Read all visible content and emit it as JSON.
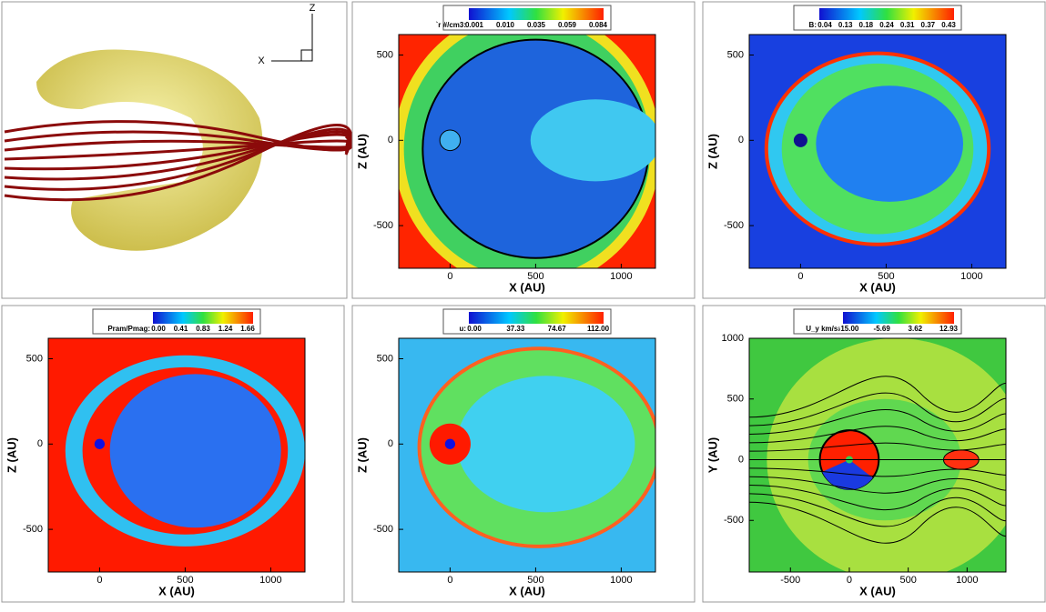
{
  "render": {
    "axes": [
      "Z",
      "X"
    ]
  },
  "plots": [
    {
      "colorbar": {
        "label": "`r #/cm3:",
        "ticks": [
          "0.001",
          "0.010",
          "0.035",
          "0.059",
          "0.084"
        ]
      },
      "xlabel": "X (AU)",
      "ylabel": "Z (AU)",
      "xlim": [
        -300,
        1200
      ],
      "ylim": [
        -750,
        620
      ],
      "xticks": [
        0,
        500,
        1000
      ],
      "yticks": [
        -500,
        0,
        500
      ]
    },
    {
      "colorbar": {
        "label": "B:",
        "ticks": [
          "0.04",
          "0.13",
          "0.18",
          "0.24",
          "0.31",
          "0.37",
          "0.43"
        ]
      },
      "xlabel": "X (AU)",
      "ylabel": "Z (AU)",
      "xlim": [
        -300,
        1200
      ],
      "ylim": [
        -750,
        620
      ],
      "xticks": [
        0,
        500,
        1000
      ],
      "yticks": [
        -500,
        0,
        500
      ]
    },
    {
      "colorbar": {
        "label": "Pram/Pmag:",
        "ticks": [
          "0.00",
          "0.41",
          "0.83",
          "1.24",
          "1.66"
        ]
      },
      "xlabel": "X (AU)",
      "ylabel": "Z (AU)",
      "xlim": [
        -300,
        1200
      ],
      "ylim": [
        -750,
        620
      ],
      "xticks": [
        0,
        500,
        1000
      ],
      "yticks": [
        -500,
        0,
        500
      ]
    },
    {
      "colorbar": {
        "label": "u:",
        "ticks": [
          "0.00",
          "37.33",
          "74.67",
          "112.00"
        ]
      },
      "xlabel": "X (AU)",
      "ylabel": "Z (AU)",
      "xlim": [
        -300,
        1200
      ],
      "ylim": [
        -750,
        620
      ],
      "xticks": [
        0,
        500,
        1000
      ],
      "yticks": [
        -500,
        0,
        500
      ]
    },
    {
      "colorbar": {
        "label": "U_y km/s:",
        "ticks": [
          "-15.00",
          "-5.69",
          "3.62",
          "12.93"
        ]
      },
      "xlabel": "X (AU)",
      "ylabel": "Y (AU)",
      "xlim": [
        -850,
        1330
      ],
      "ylim": [
        -925,
        1000
      ],
      "xticks": [
        -500,
        0,
        500,
        1000
      ],
      "yticks": [
        -500,
        0,
        500,
        1000
      ]
    }
  ]
}
